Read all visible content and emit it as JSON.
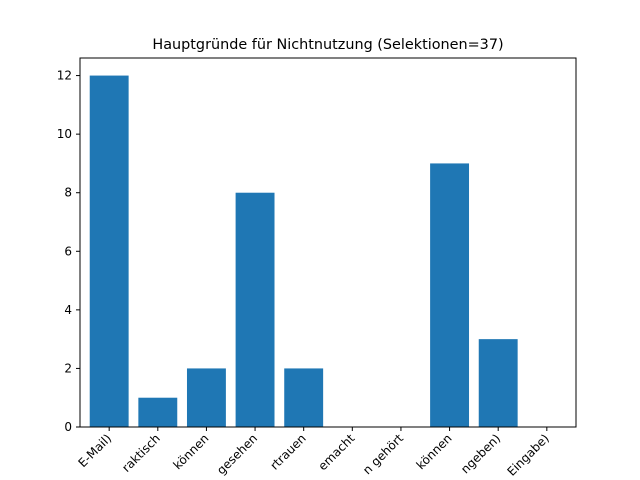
{
  "chart_data": {
    "type": "bar",
    "title": "Hauptgründe für Nichtnutzung (Selektionen=37)",
    "xlabel": "",
    "ylabel": "",
    "categories": [
      "E-Mail)",
      "raktisch",
      "können",
      "gesehen",
      "rtrauen",
      "emacht",
      "n gehört",
      "können",
      "ngeben)",
      "Eingabe)"
    ],
    "values": [
      12,
      1,
      2,
      8,
      2,
      0,
      0,
      9,
      3,
      0
    ],
    "ylim": [
      0,
      12.6
    ],
    "yticks": [
      0,
      2,
      4,
      6,
      8,
      10,
      12
    ],
    "bar_color": "#1f77b4",
    "grid": false,
    "legend": "none"
  }
}
